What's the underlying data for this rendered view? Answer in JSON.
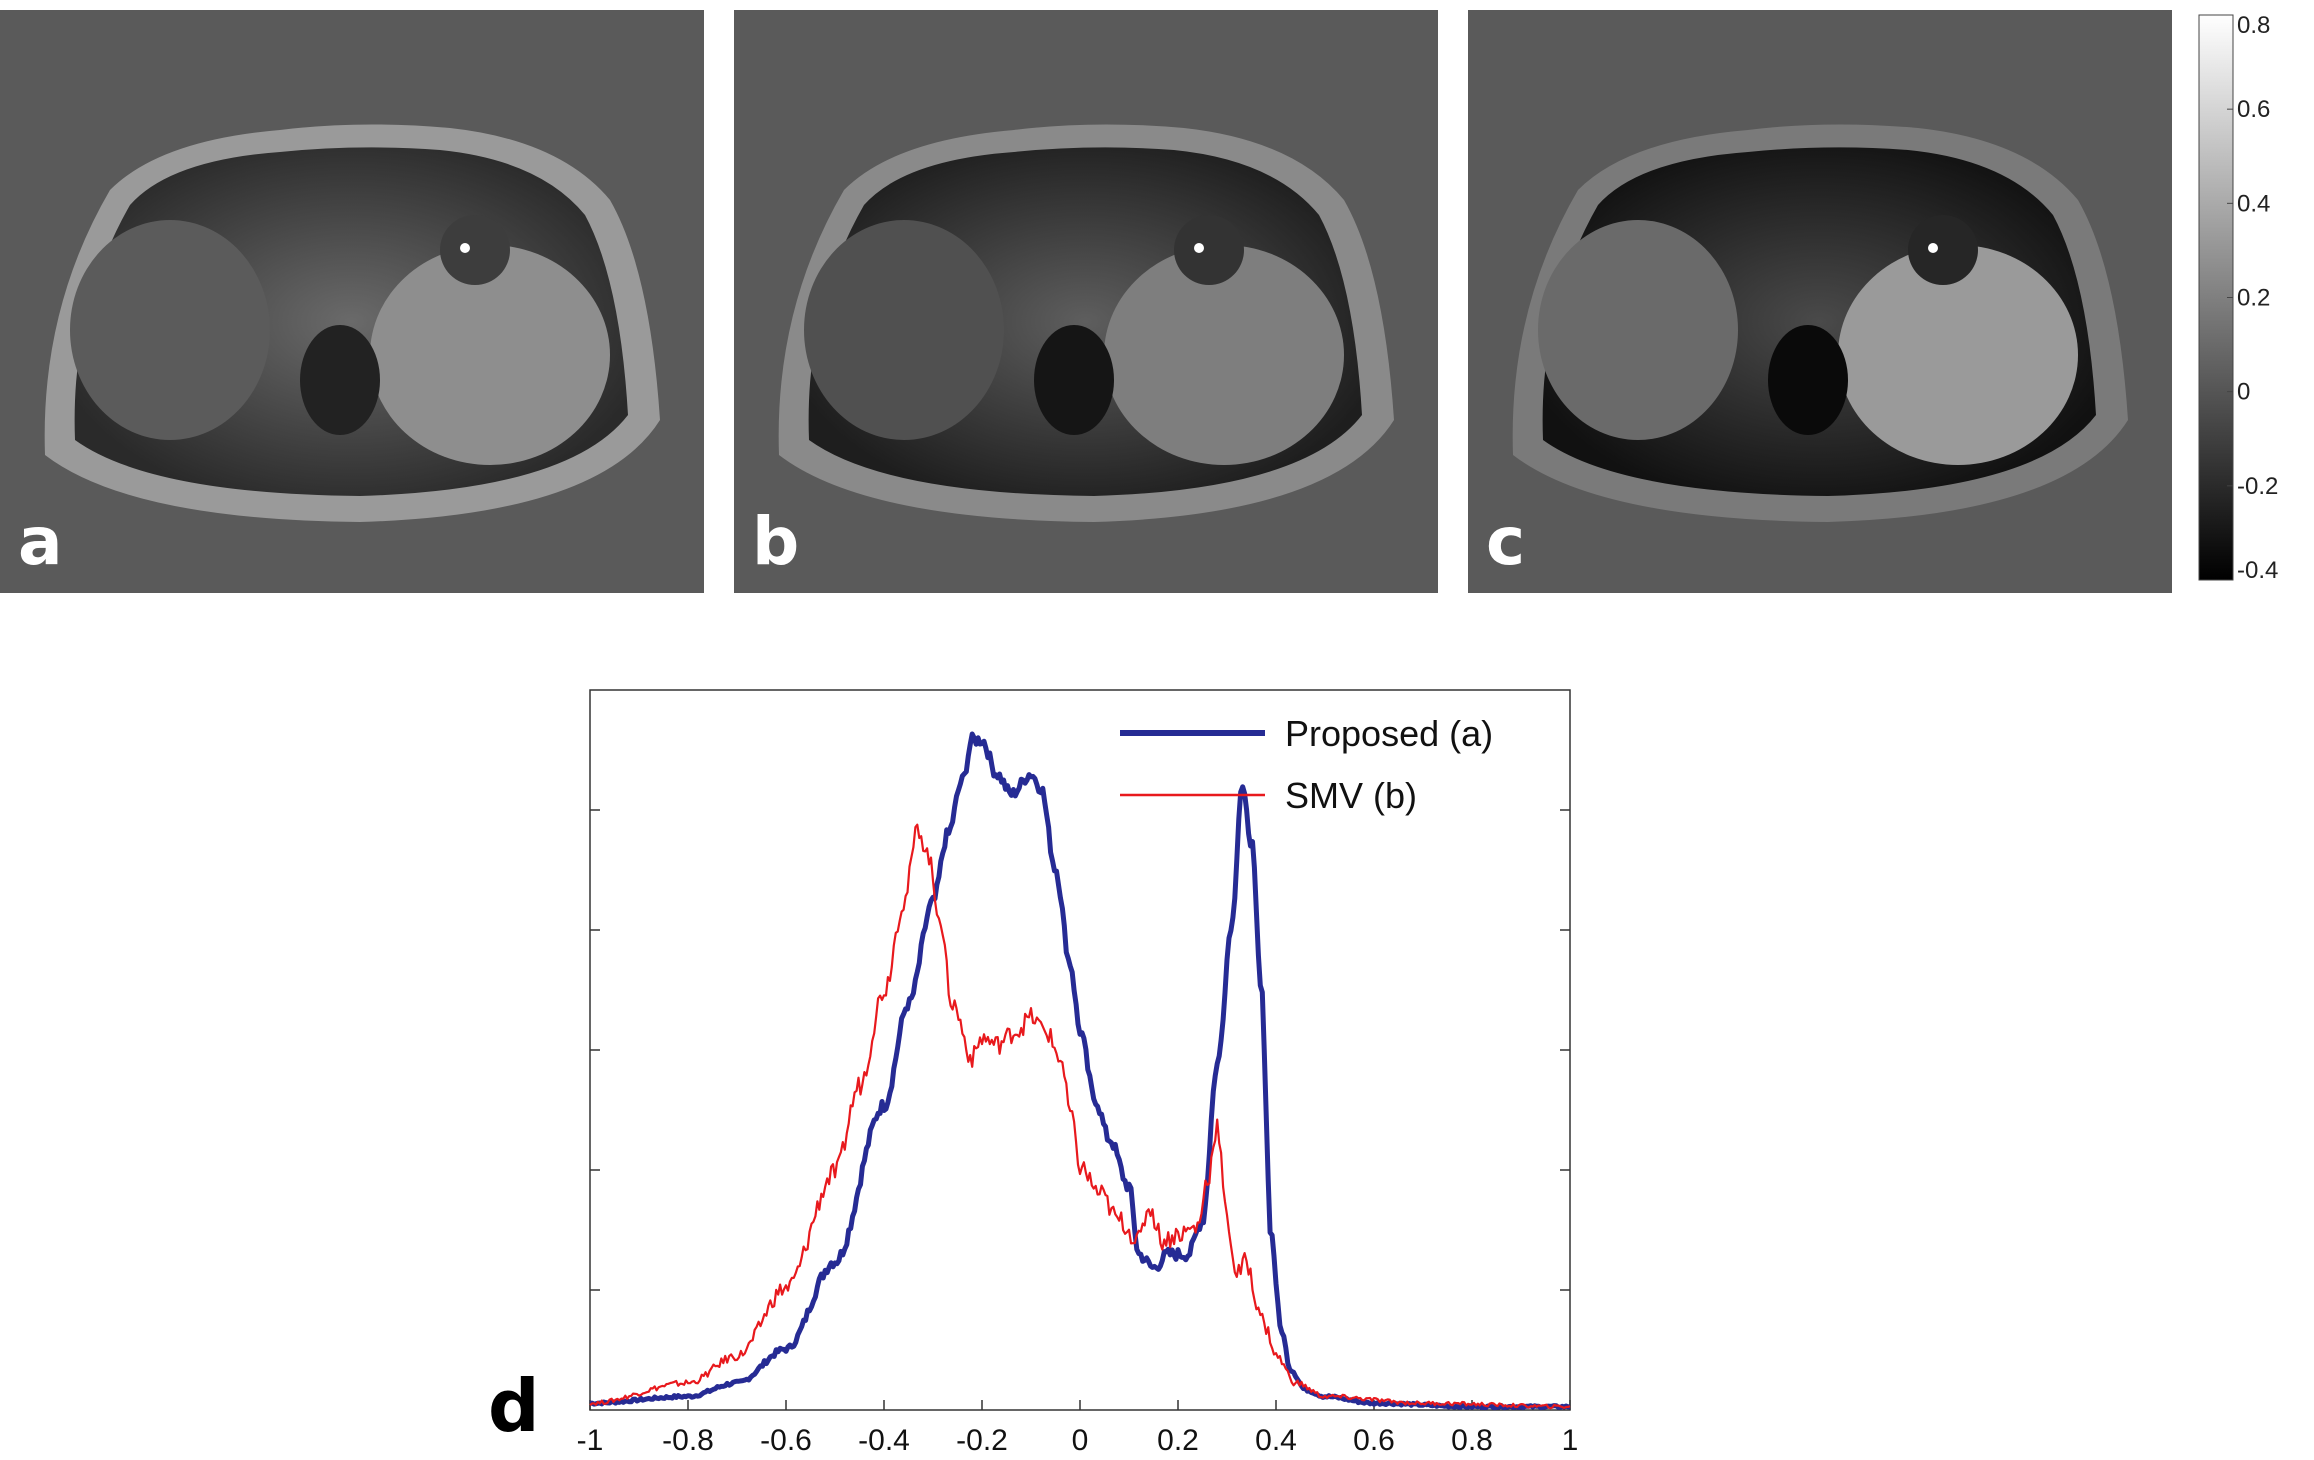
{
  "panels": [
    {
      "label": "a"
    },
    {
      "label": "b"
    },
    {
      "label": "c"
    }
  ],
  "colorbar": {
    "ticks": [
      "0.8",
      "0.6",
      "0.4",
      "0.2",
      "0",
      "-0.2",
      "-0.4"
    ],
    "range": [
      -0.4,
      0.8
    ]
  },
  "plot_label": "d",
  "chart_data": {
    "type": "line",
    "title": "",
    "xlabel": "",
    "ylabel": "",
    "xlim": [
      -1,
      1
    ],
    "ylim": [
      0,
      1
    ],
    "x_ticks": [
      "-1",
      "-0.8",
      "-0.6",
      "-0.4",
      "-0.2",
      "0",
      "0.2",
      "0.4",
      "0.6",
      "0.8",
      "1"
    ],
    "grid": false,
    "legend": "top-right",
    "series": [
      {
        "name": "Proposed (a)",
        "color": "#262b94",
        "x": [
          -1,
          -0.8,
          -0.7,
          -0.6,
          -0.5,
          -0.4,
          -0.35,
          -0.3,
          -0.27,
          -0.24,
          -0.22,
          -0.2,
          -0.17,
          -0.14,
          -0.1,
          -0.08,
          -0.05,
          -0.02,
          0,
          0.03,
          0.06,
          0.1,
          0.12,
          0.15,
          0.18,
          0.22,
          0.25,
          0.28,
          0.31,
          0.33,
          0.35,
          0.37,
          0.39,
          0.41,
          0.43,
          0.46,
          0.5,
          0.6,
          0.8,
          1
        ],
        "values": [
          0.01,
          0.02,
          0.04,
          0.09,
          0.22,
          0.45,
          0.6,
          0.75,
          0.85,
          0.93,
          0.99,
          0.99,
          0.94,
          0.91,
          0.94,
          0.92,
          0.8,
          0.66,
          0.56,
          0.46,
          0.4,
          0.33,
          0.23,
          0.21,
          0.23,
          0.23,
          0.28,
          0.51,
          0.72,
          0.92,
          0.84,
          0.62,
          0.26,
          0.12,
          0.06,
          0.03,
          0.02,
          0.01,
          0.005,
          0.005
        ]
      },
      {
        "name": "SMV (b)",
        "color": "#e8191d",
        "x": [
          -1,
          -0.8,
          -0.7,
          -0.6,
          -0.5,
          -0.45,
          -0.4,
          -0.36,
          -0.33,
          -0.31,
          -0.29,
          -0.26,
          -0.22,
          -0.2,
          -0.17,
          -0.13,
          -0.1,
          -0.07,
          -0.04,
          -0.02,
          0,
          0.04,
          0.08,
          0.12,
          0.14,
          0.17,
          0.2,
          0.24,
          0.26,
          0.28,
          0.3,
          0.32,
          0.34,
          0.36,
          0.38,
          0.4,
          0.44,
          0.5,
          0.7,
          1
        ],
        "values": [
          0.01,
          0.04,
          0.08,
          0.18,
          0.35,
          0.48,
          0.62,
          0.75,
          0.86,
          0.82,
          0.74,
          0.6,
          0.52,
          0.55,
          0.54,
          0.56,
          0.58,
          0.56,
          0.52,
          0.44,
          0.36,
          0.32,
          0.28,
          0.25,
          0.3,
          0.25,
          0.26,
          0.27,
          0.34,
          0.42,
          0.28,
          0.2,
          0.22,
          0.16,
          0.12,
          0.08,
          0.04,
          0.02,
          0.01,
          0.005
        ]
      }
    ]
  }
}
